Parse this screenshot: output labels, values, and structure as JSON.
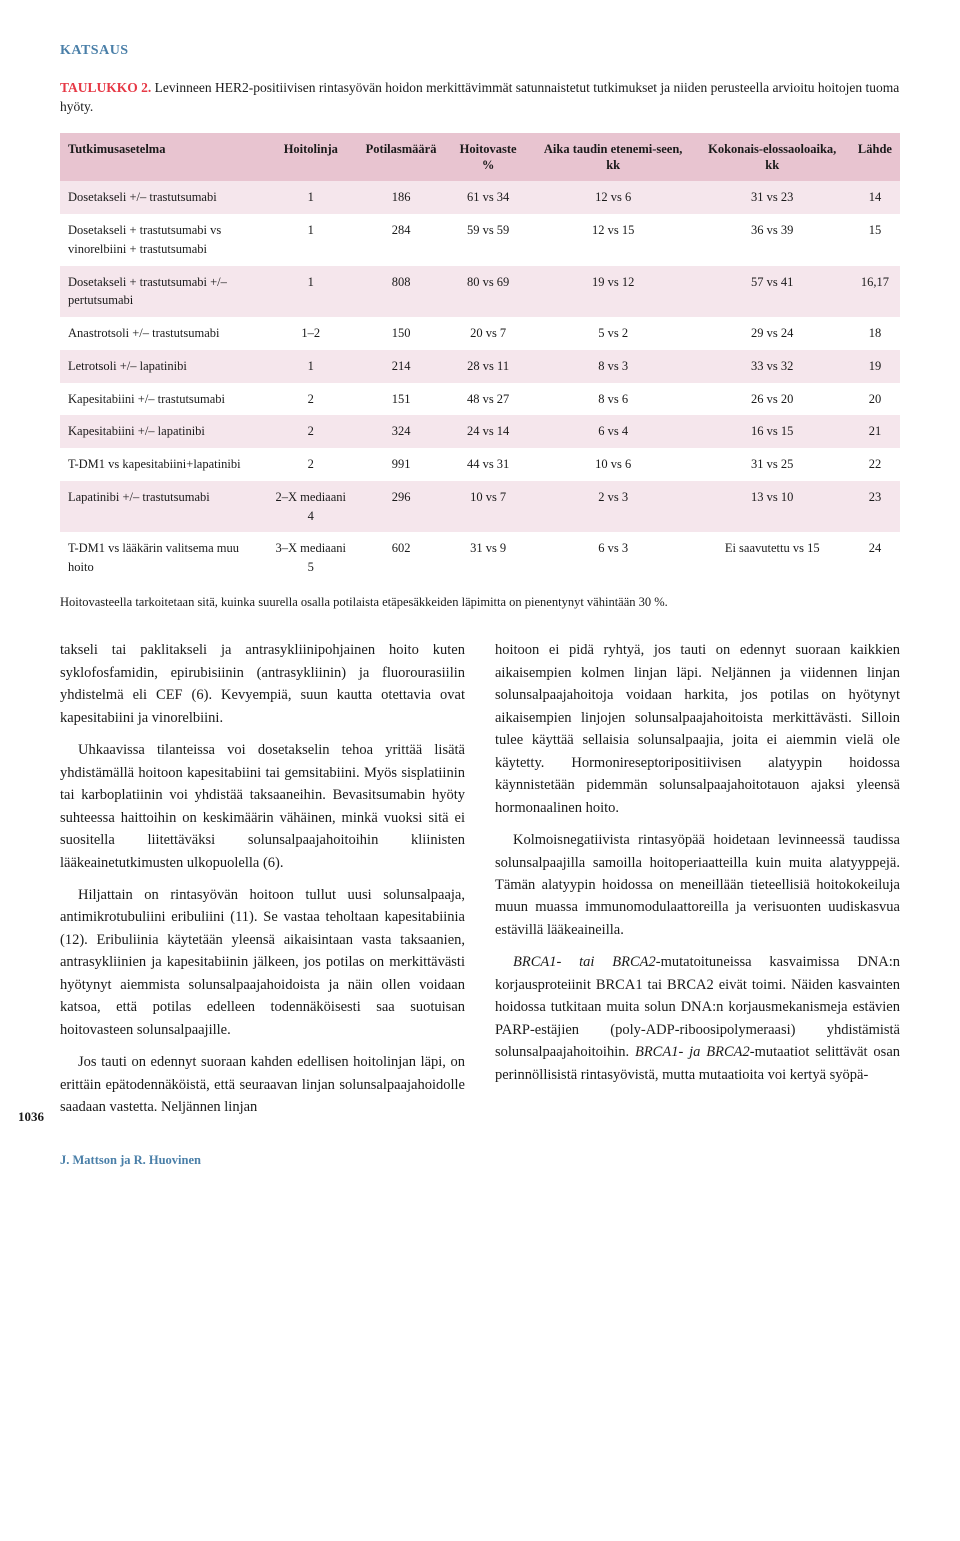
{
  "section_label": "KATSAUS",
  "table": {
    "label": "TAULUKKO 2.",
    "caption": "Levinneen HER2-positiivisen rintasyövän hoidon merkittävimmät satunnaistetut tutkimukset ja niiden perusteella arvioitu hoitojen tuoma hyöty.",
    "columns": [
      "Tutkimusasetelma",
      "Hoitolinja",
      "Potilasmäärä",
      "Hoitovaste %",
      "Aika taudin etenemi-seen, kk",
      "Kokonais-elossaoloaika, kk",
      "Lähde"
    ],
    "rows": [
      [
        "Dosetakseli +/– trastutsumabi",
        "1",
        "186",
        "61 vs 34",
        "12 vs  6",
        "31 vs 23",
        "14"
      ],
      [
        "Dosetakseli + trastutsumabi vs vinorelbiini + trastutsumabi",
        "1",
        "284",
        "59 vs 59",
        "12 vs 15",
        "36 vs 39",
        "15"
      ],
      [
        "Dosetakseli + trastutsumabi +/– pertutsumabi",
        "1",
        "808",
        "80 vs 69",
        "19 vs 12",
        "57 vs 41",
        "16,17"
      ],
      [
        "Anastrotsoli +/– trastutsumabi",
        "1–2",
        "150",
        "20 vs  7",
        "5 vs 2",
        "29 vs 24",
        "18"
      ],
      [
        "Letrotsoli +/– lapatinibi",
        "1",
        "214",
        "28 vs 11",
        "8 vs 3",
        "33 vs 32",
        "19"
      ],
      [
        "Kapesitabiini +/– trastutsumabi",
        "2",
        "151",
        "48 vs 27",
        "8 vs 6",
        "26 vs 20",
        "20"
      ],
      [
        "Kapesitabiini +/– lapatinibi",
        "2",
        "324",
        "24 vs 14",
        "6 vs 4",
        "16 vs 15",
        "21"
      ],
      [
        "T-DM1 vs kapesitabiini+lapatinibi",
        "2",
        "991",
        "44 vs 31",
        "10 vs 6",
        "31 vs 25",
        "22"
      ],
      [
        "Lapatinibi +/– trastutsumabi",
        "2–X mediaani 4",
        "296",
        "10 vs  7",
        "2 vs 3",
        "13 vs 10",
        "23"
      ],
      [
        "T-DM1 vs lääkärin valitsema muu hoito",
        "3–X mediaani 5",
        "602",
        "31 vs  9",
        "6 vs 3",
        "Ei saavutettu vs 15",
        "24"
      ]
    ],
    "footnote": "Hoitovasteella tarkoitetaan sitä, kuinka suurella osalla potilaista etäpesäkkeiden läpimitta on pienentynyt vähintään 30 %."
  },
  "left_col": {
    "p1": "takseli tai paklitakseli ja antrasykliinipohjainen hoito kuten syklofosfamidin, epirubisiinin (antrasykliinin) ja fluorourasiilin yhdistelmä eli CEF (6). Kevyempiä, suun kautta otettavia ovat kapesitabiini ja vinorelbiini.",
    "p2": "Uhkaavissa tilanteissa voi dosetakselin tehoa yrittää lisätä yhdistämällä hoitoon kapesitabiini tai gemsitabiini. Myös sisplatiinin tai karboplatiinin voi yhdistää taksaaneihin. Bevasitsumabin hyöty suhteessa haittoihin on keskimäärin vähäinen, minkä vuoksi sitä ei suositella liitettäväksi solunsalpaajahoitoihin kliinisten lääkeainetutkimusten ulkopuolella (6).",
    "p3": "Hiljattain on rintasyövän hoitoon tullut uusi solunsalpaaja, antimikrotubuliini eribuliini (11). Se vastaa teholtaan kapesitabiinia (12). Eribuliinia käytetään yleensä aikaisintaan vasta taksaanien, antrasykliinien ja kapesitabiinin jälkeen, jos potilas on merkittävästi hyötynyt aiemmista solunsalpaajahoidoista ja näin ollen voidaan katsoa, että potilas edelleen todennäköisesti saa suotuisan hoitovasteen solunsalpaajille.",
    "p4": "Jos tauti on edennyt suoraan kahden edellisen hoitolinjan läpi, on erittäin epätodennäköistä, että seuraavan linjan solunsalpaajahoidolle saadaan vastetta. Neljännen linjan"
  },
  "right_col": {
    "p1": "hoitoon ei pidä ryhtyä, jos tauti on edennyt suoraan kaikkien aikaisempien kolmen linjan läpi. Neljännen ja viidennen linjan solunsalpaajahoitoja voidaan harkita, jos potilas on hyötynyt aikaisempien linjojen solunsalpaajahoitoista merkittävästi. Silloin tulee käyttää sellaisia solunsalpaajia, joita ei aiemmin vielä ole käytetty. Hormonireseptoripositiivisen alatyypin hoidossa käynnistetään pidemmän solunsalpaajahoitotauon ajaksi yleensä hormonaalinen hoito.",
    "p2": "Kolmoisnegatiivista rintasyöpää hoidetaan levinneessä taudissa solunsalpaajilla samoilla hoitoperiaatteilla kuin muita alatyyppejä. Tämän alatyypin hoidossa on meneillään tieteellisiä hoitokokeiluja muun muassa immunomodulaattoreilla ja verisuonten uudiskasvua estävillä lääkeaineilla.",
    "p3_a": "BRCA1- tai BRCA2-",
    "p3_b": "mutatoituneissa kasvaimissa DNA:n korjausproteiinit BRCA1 tai BRCA2 eivät toimi. Näiden kasvainten hoidossa tutkitaan muita solun DNA:n korjausmekanismeja estävien PARP-estäjien (poly-ADP-riboosipolymeraasi) yhdistämistä solunsalpaajahoitoihin. ",
    "p3_c": "BRCA1- ja BRCA2-",
    "p3_d": "mutaatiot selittävät osan perinnöllisistä rintasyövistä, mutta mutaatioita voi kertyä syöpä-"
  },
  "page_number": "1036",
  "footer_authors": "J. Mattson ja R. Huovinen"
}
